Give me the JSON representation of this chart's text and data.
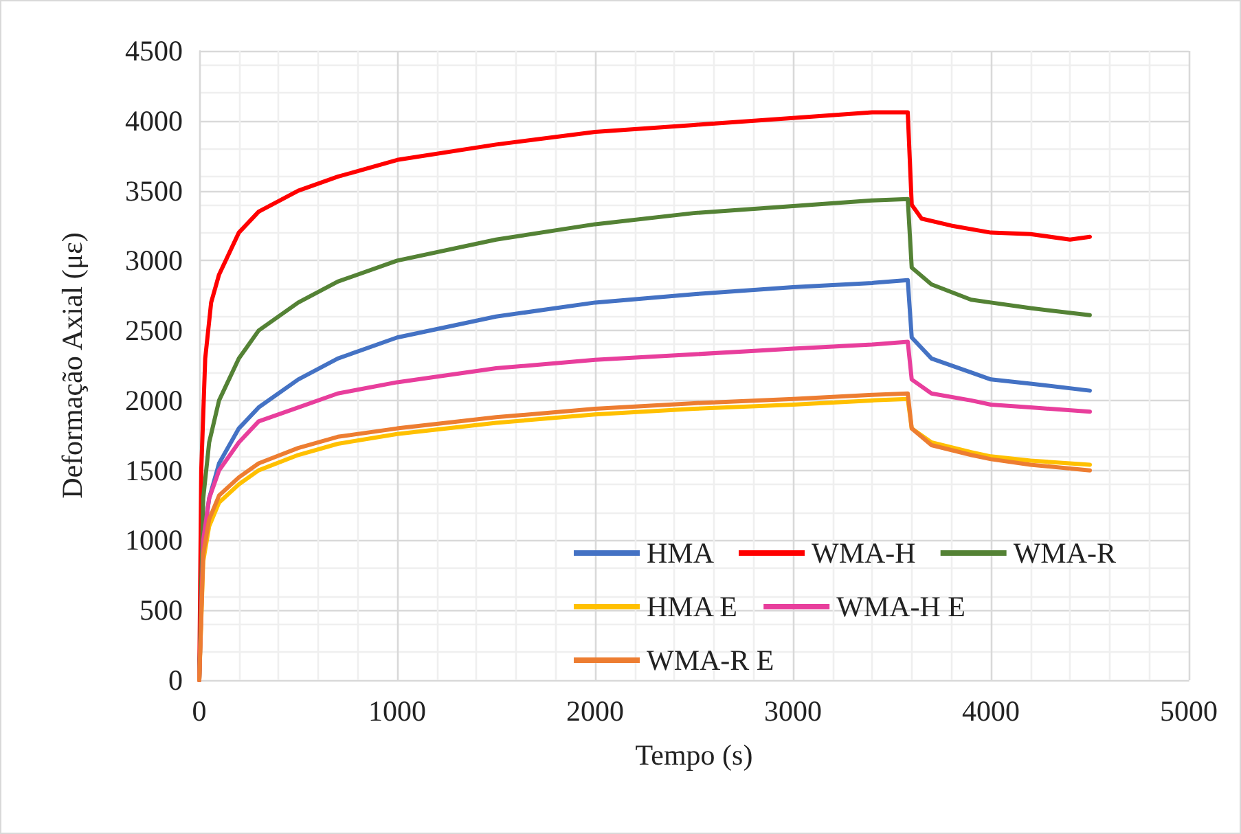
{
  "chart_data": {
    "type": "line",
    "xlabel": "Tempo (s)",
    "ylabel": "Deformação Axial (με)",
    "xlim": [
      0,
      5000
    ],
    "xticks": [
      0,
      1000,
      2000,
      3000,
      4000,
      5000
    ],
    "ylim": [
      0,
      4500
    ],
    "yticks": [
      0,
      500,
      1000,
      1500,
      2000,
      2500,
      3000,
      3500,
      4000,
      4500
    ],
    "grid": true,
    "legend": "bottom right",
    "marker": "none",
    "line_style": "solid",
    "series": [
      {
        "name": "HMA",
        "color": "#4472c4",
        "x": [
          0,
          20,
          50,
          100,
          200,
          300,
          500,
          700,
          1000,
          1500,
          2000,
          2500,
          3000,
          3400,
          3580,
          3600,
          3700,
          3900,
          4000,
          4200,
          4500
        ],
        "values": [
          0,
          1000,
          1300,
          1550,
          1800,
          1950,
          2150,
          2300,
          2450,
          2600,
          2700,
          2760,
          2810,
          2840,
          2860,
          2450,
          2300,
          2200,
          2150,
          2120,
          2070
        ]
      },
      {
        "name": "WMA-H",
        "color": "#ff0000",
        "x": [
          0,
          10,
          30,
          60,
          100,
          200,
          300,
          500,
          700,
          1000,
          1500,
          2000,
          2500,
          3000,
          3400,
          3580,
          3600,
          3650,
          3800,
          4000,
          4200,
          4400,
          4500
        ],
        "values": [
          0,
          1500,
          2300,
          2700,
          2900,
          3200,
          3350,
          3500,
          3600,
          3720,
          3830,
          3920,
          3970,
          4020,
          4060,
          4060,
          3400,
          3300,
          3250,
          3200,
          3190,
          3150,
          3170
        ]
      },
      {
        "name": "WMA-R",
        "color": "#548235",
        "x": [
          0,
          20,
          50,
          100,
          200,
          300,
          500,
          700,
          1000,
          1500,
          2000,
          2500,
          3000,
          3400,
          3580,
          3600,
          3700,
          3900,
          4000,
          4200,
          4500
        ],
        "values": [
          0,
          1300,
          1700,
          2000,
          2300,
          2500,
          2700,
          2850,
          3000,
          3150,
          3260,
          3340,
          3390,
          3430,
          3440,
          2950,
          2830,
          2720,
          2700,
          2660,
          2610
        ]
      },
      {
        "name": "HMA E",
        "color": "#ffc000",
        "x": [
          0,
          20,
          50,
          100,
          200,
          300,
          500,
          700,
          1000,
          1500,
          2000,
          2500,
          3000,
          3400,
          3580,
          3600,
          3700,
          3900,
          4000,
          4200,
          4500
        ],
        "values": [
          0,
          850,
          1100,
          1270,
          1400,
          1500,
          1610,
          1690,
          1760,
          1840,
          1900,
          1940,
          1970,
          2000,
          2010,
          1800,
          1700,
          1630,
          1600,
          1570,
          1540
        ]
      },
      {
        "name": "WMA-H E",
        "color": "#e83e9c",
        "x": [
          0,
          20,
          50,
          100,
          200,
          300,
          500,
          700,
          1000,
          1500,
          2000,
          2500,
          3000,
          3400,
          3580,
          3600,
          3700,
          3900,
          4000,
          4200,
          4500
        ],
        "values": [
          0,
          1000,
          1300,
          1500,
          1700,
          1850,
          1950,
          2050,
          2130,
          2230,
          2290,
          2330,
          2370,
          2400,
          2420,
          2150,
          2050,
          2000,
          1970,
          1950,
          1920
        ]
      },
      {
        "name": "WMA-R E",
        "color": "#ed7d31",
        "x": [
          0,
          20,
          50,
          100,
          200,
          300,
          500,
          700,
          1000,
          1500,
          2000,
          2500,
          3000,
          3400,
          3580,
          3600,
          3700,
          3900,
          4000,
          4200,
          4500
        ],
        "values": [
          0,
          900,
          1150,
          1320,
          1450,
          1550,
          1660,
          1740,
          1800,
          1880,
          1940,
          1980,
          2010,
          2040,
          2050,
          1800,
          1680,
          1610,
          1580,
          1540,
          1500
        ]
      }
    ]
  }
}
